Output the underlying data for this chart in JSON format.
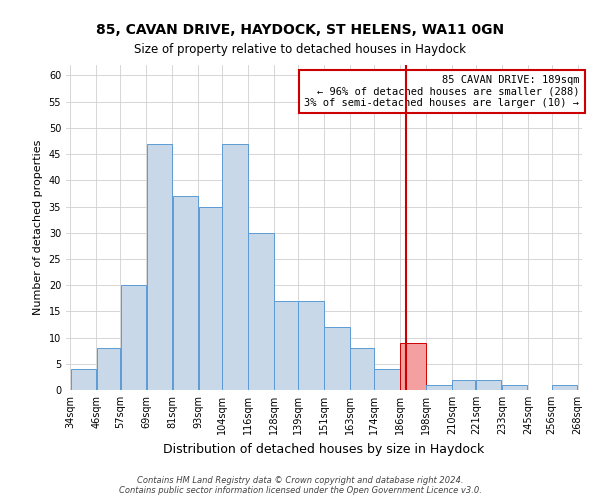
{
  "title": "85, CAVAN DRIVE, HAYDOCK, ST HELENS, WA11 0GN",
  "subtitle": "Size of property relative to detached houses in Haydock",
  "xlabel": "Distribution of detached houses by size in Haydock",
  "ylabel": "Number of detached properties",
  "bin_edges": [
    34,
    46,
    57,
    69,
    81,
    93,
    104,
    116,
    128,
    139,
    151,
    163,
    174,
    186,
    198,
    210,
    221,
    233,
    245,
    256,
    268
  ],
  "bar_heights": [
    4,
    8,
    20,
    47,
    37,
    35,
    47,
    30,
    17,
    17,
    12,
    8,
    4,
    9,
    1,
    2,
    2,
    1,
    0,
    1
  ],
  "bar_color": "#c8d8e8",
  "bar_edgecolor": "#5b9bd5",
  "highlight_bar_index": 13,
  "highlight_bar_color": "#f4a0a0",
  "highlight_bar_edgecolor": "#cc0000",
  "vline_x": 189,
  "vline_color": "#cc0000",
  "annotation_text": "85 CAVAN DRIVE: 189sqm\n← 96% of detached houses are smaller (288)\n3% of semi-detached houses are larger (10) →",
  "annotation_box_edgecolor": "#cc0000",
  "annotation_box_facecolor": "#ffffff",
  "ylim": [
    0,
    62
  ],
  "yticks": [
    0,
    5,
    10,
    15,
    20,
    25,
    30,
    35,
    40,
    45,
    50,
    55,
    60
  ],
  "footer_text": "Contains HM Land Registry data © Crown copyright and database right 2024.\nContains public sector information licensed under the Open Government Licence v3.0.",
  "title_fontsize": 10,
  "subtitle_fontsize": 8.5,
  "xlabel_fontsize": 9,
  "ylabel_fontsize": 8,
  "tick_fontsize": 7,
  "annotation_fontsize": 7.5,
  "footer_fontsize": 6
}
